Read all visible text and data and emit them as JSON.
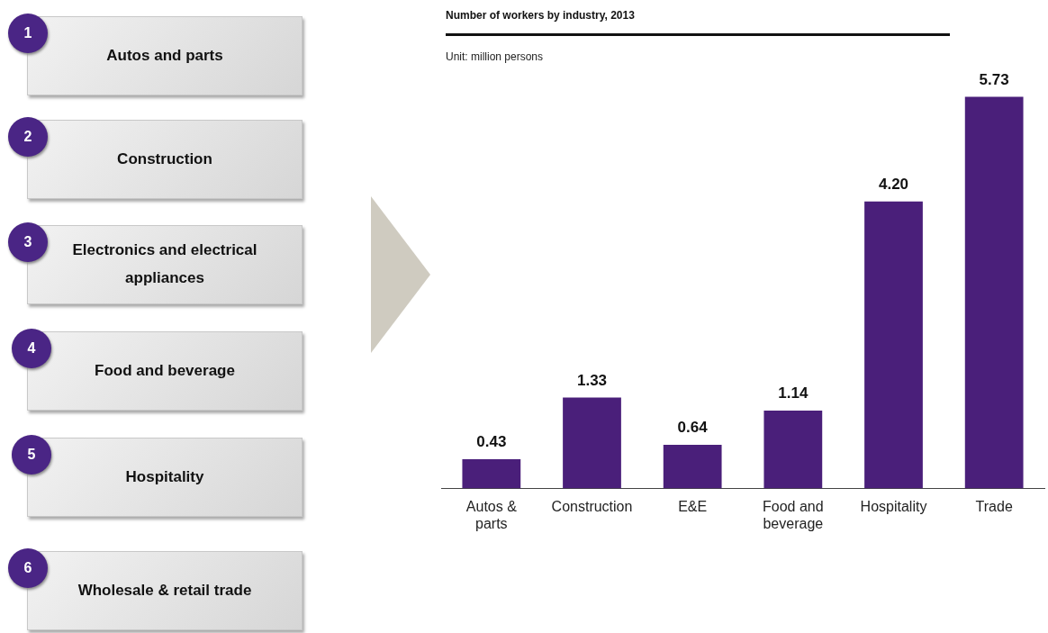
{
  "chart_data": [
    {
      "type": "other",
      "annotations": [
        "1",
        "Autos and parts"
      ]
    },
    {
      "type": "other",
      "annotations": [
        "2",
        "Construction"
      ]
    },
    {
      "type": "other",
      "annotations": [
        "3",
        "Electronics and electrical appliances"
      ]
    },
    {
      "type": "other",
      "annotations": [
        "4",
        "Food and beverage"
      ]
    },
    {
      "type": "other",
      "annotations": [
        "5",
        "Hospitality"
      ]
    },
    {
      "type": "other",
      "annotations": [
        "6",
        "Wholesale & retail trade"
      ]
    },
    {
      "type": "bar",
      "title": "Number of workers by industry, 2013",
      "subtitle": "Unit: million persons",
      "categories": [
        "Autos & parts",
        "Construction",
        "E&E",
        "Food and beverage",
        "Hospitality",
        "Trade"
      ],
      "values": [
        0.43,
        1.33,
        0.64,
        1.14,
        4.2,
        5.73
      ],
      "value_labels": [
        "0.43",
        "1.33",
        "0.64",
        "1.14",
        "4.20",
        "5.73"
      ],
      "color": "#4a1f7a"
    }
  ]
}
